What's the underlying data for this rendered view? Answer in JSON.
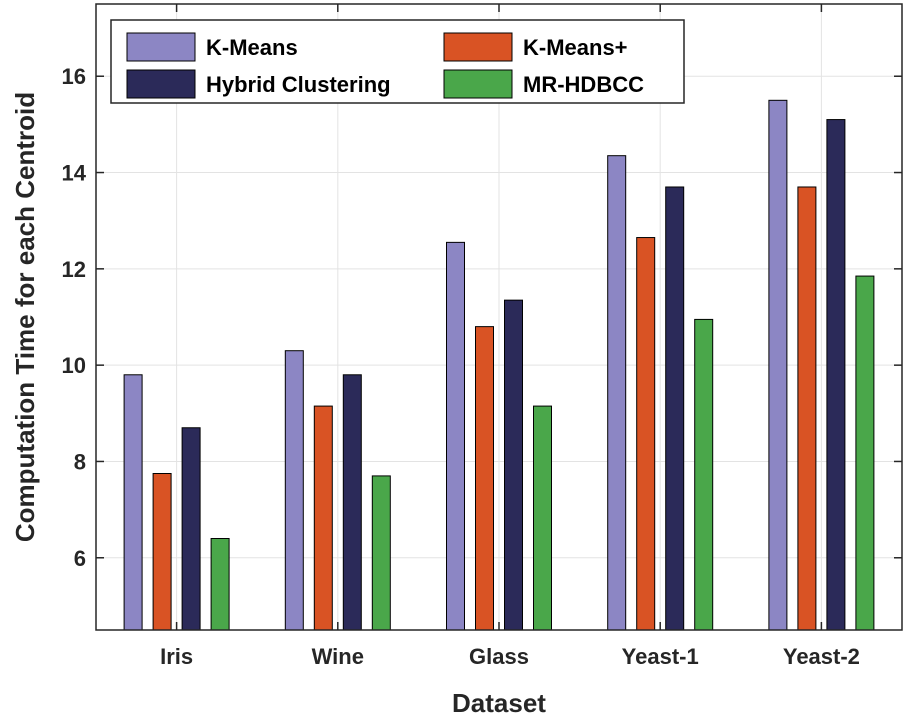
{
  "chart_data": {
    "type": "bar",
    "title": "",
    "xlabel": "Dataset",
    "ylabel": "Computation Time for each Centroid",
    "categories": [
      "Iris",
      "Wine",
      "Glass",
      "Yeast-1",
      "Yeast-2"
    ],
    "ylim": [
      4.5,
      17.5
    ],
    "yticks": [
      6,
      8,
      10,
      12,
      14,
      16
    ],
    "grid": true,
    "legend_position": "top-left",
    "series": [
      {
        "name": "K-Means",
        "color": "#8c86c4",
        "values": [
          9.8,
          10.3,
          12.55,
          14.35,
          15.5
        ]
      },
      {
        "name": "K-Means+",
        "color": "#d95324",
        "values": [
          7.75,
          9.15,
          10.8,
          12.65,
          13.7
        ]
      },
      {
        "name": "Hybrid Clustering",
        "color": "#2b2a59",
        "values": [
          8.7,
          9.8,
          11.35,
          13.7,
          15.1
        ]
      },
      {
        "name": "MR-HDBCC",
        "color": "#4aa74a",
        "values": [
          6.4,
          7.7,
          9.15,
          10.95,
          11.85
        ]
      }
    ]
  }
}
